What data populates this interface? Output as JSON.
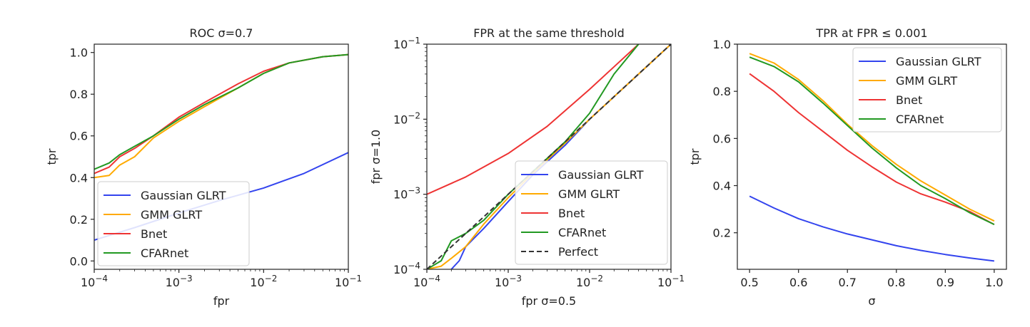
{
  "colors": {
    "gaussian": "#3344ee",
    "gmm": "#ffaa00",
    "bnet": "#ee3333",
    "cfarnet": "#229922",
    "perfect": "#333333"
  },
  "chart_data": [
    {
      "type": "line",
      "title": "ROC σ=0.7",
      "xlabel": "fpr",
      "ylabel": "tpr",
      "xscale": "log",
      "xlim": [
        0.0001,
        0.1
      ],
      "ylim": [
        -0.04,
        1.04
      ],
      "xticks": [
        "10^-4",
        "10^-3",
        "10^-2",
        "10^-1"
      ],
      "yticks": [
        "0.0",
        "0.2",
        "0.4",
        "0.6",
        "0.8",
        "1.0"
      ],
      "legend": "lower-left",
      "series": [
        {
          "name": "Gaussian GLRT",
          "x": [
            0.0001,
            0.0003,
            0.001,
            0.003,
            0.01,
            0.03,
            0.1
          ],
          "y": [
            0.1,
            0.16,
            0.23,
            0.29,
            0.35,
            0.42,
            0.52
          ]
        },
        {
          "name": "GMM GLRT",
          "x": [
            0.0001,
            0.00015,
            0.0002,
            0.0003,
            0.0005,
            0.001,
            0.002,
            0.005,
            0.01,
            0.02,
            0.05,
            0.1
          ],
          "y": [
            0.4,
            0.41,
            0.46,
            0.5,
            0.59,
            0.67,
            0.74,
            0.83,
            0.9,
            0.95,
            0.98,
            0.99
          ]
        },
        {
          "name": "Bnet",
          "x": [
            0.0001,
            0.00015,
            0.0002,
            0.0003,
            0.0005,
            0.001,
            0.002,
            0.005,
            0.01,
            0.02,
            0.05,
            0.1
          ],
          "y": [
            0.42,
            0.45,
            0.5,
            0.54,
            0.6,
            0.69,
            0.76,
            0.85,
            0.91,
            0.95,
            0.98,
            0.99
          ]
        },
        {
          "name": "CFARnet",
          "x": [
            0.0001,
            0.00015,
            0.0002,
            0.0003,
            0.0005,
            0.001,
            0.002,
            0.005,
            0.01,
            0.02,
            0.05,
            0.1
          ],
          "y": [
            0.44,
            0.47,
            0.51,
            0.55,
            0.6,
            0.68,
            0.75,
            0.83,
            0.9,
            0.95,
            0.98,
            0.99
          ]
        }
      ]
    },
    {
      "type": "line",
      "title": "FPR at the same threshold",
      "xlabel": "fpr σ=0.5",
      "ylabel": "fpr σ=1.0",
      "xscale": "log",
      "yscale": "log",
      "xlim": [
        0.0001,
        0.1
      ],
      "ylim": [
        0.0001,
        0.1
      ],
      "xticks": [
        "10^-4",
        "10^-3",
        "10^-2",
        "10^-1"
      ],
      "yticks": [
        "10^-4",
        "10^-3",
        "10^-2",
        "10^-1"
      ],
      "legend": "lower-right",
      "series": [
        {
          "name": "Gaussian GLRT",
          "x": [
            0.0002,
            0.00025,
            0.0003,
            0.0005,
            0.001,
            0.002,
            0.005,
            0.01,
            0.03,
            0.1
          ],
          "y": [
            0.0001,
            0.00013,
            0.0002,
            0.00035,
            0.0008,
            0.0018,
            0.0045,
            0.01,
            0.03,
            0.1
          ]
        },
        {
          "name": "GMM GLRT",
          "x": [
            0.0001,
            0.00015,
            0.0002,
            0.0003,
            0.0005,
            0.001,
            0.002,
            0.005,
            0.01,
            0.03,
            0.1
          ],
          "y": [
            0.0001,
            0.00011,
            0.00014,
            0.0002,
            0.0004,
            0.0009,
            0.0019,
            0.0048,
            0.01,
            0.03,
            0.1
          ]
        },
        {
          "name": "Bnet",
          "x": [
            0.0001,
            0.0003,
            0.001,
            0.003,
            0.01,
            0.02,
            0.04
          ],
          "y": [
            0.001,
            0.0017,
            0.0035,
            0.008,
            0.025,
            0.05,
            0.1
          ]
        },
        {
          "name": "CFARnet",
          "x": [
            0.0001,
            0.00015,
            0.0002,
            0.0003,
            0.0005,
            0.001,
            0.002,
            0.005,
            0.01,
            0.02,
            0.04
          ],
          "y": [
            0.0001,
            0.00013,
            0.00024,
            0.0003,
            0.00045,
            0.001,
            0.002,
            0.005,
            0.012,
            0.04,
            0.1
          ]
        },
        {
          "name": "Perfect",
          "x": [
            0.0001,
            0.1
          ],
          "y": [
            0.0001,
            0.1
          ]
        }
      ]
    },
    {
      "type": "line",
      "title": "TPR at FPR ≤ 0.001",
      "xlabel": "σ",
      "ylabel": "tpr",
      "xlim": [
        0.475,
        1.025
      ],
      "ylim": [
        0.045,
        1.0
      ],
      "xticks": [
        "0.5",
        "0.6",
        "0.7",
        "0.8",
        "0.9",
        "1.0"
      ],
      "yticks": [
        "0.2",
        "0.4",
        "0.6",
        "0.8",
        "1.0"
      ],
      "legend": "top-right",
      "series": [
        {
          "name": "Gaussian GLRT",
          "x": [
            0.5,
            0.55,
            0.6,
            0.65,
            0.7,
            0.75,
            0.8,
            0.85,
            0.9,
            0.95,
            1.0
          ],
          "y": [
            0.355,
            0.305,
            0.26,
            0.225,
            0.195,
            0.17,
            0.145,
            0.125,
            0.108,
            0.093,
            0.08
          ]
        },
        {
          "name": "GMM GLRT",
          "x": [
            0.5,
            0.55,
            0.6,
            0.65,
            0.7,
            0.75,
            0.8,
            0.85,
            0.9,
            0.95,
            1.0
          ],
          "y": [
            0.96,
            0.92,
            0.85,
            0.76,
            0.66,
            0.57,
            0.49,
            0.42,
            0.36,
            0.3,
            0.25
          ]
        },
        {
          "name": "Bnet",
          "x": [
            0.5,
            0.55,
            0.6,
            0.65,
            0.7,
            0.75,
            0.8,
            0.85,
            0.9,
            0.95,
            1.0
          ],
          "y": [
            0.875,
            0.8,
            0.71,
            0.63,
            0.55,
            0.48,
            0.415,
            0.365,
            0.33,
            0.29,
            0.235
          ]
        },
        {
          "name": "CFARnet",
          "x": [
            0.5,
            0.55,
            0.6,
            0.65,
            0.7,
            0.75,
            0.8,
            0.85,
            0.9,
            0.95,
            1.0
          ],
          "y": [
            0.945,
            0.905,
            0.84,
            0.75,
            0.655,
            0.56,
            0.475,
            0.4,
            0.345,
            0.285,
            0.235
          ]
        }
      ]
    }
  ]
}
